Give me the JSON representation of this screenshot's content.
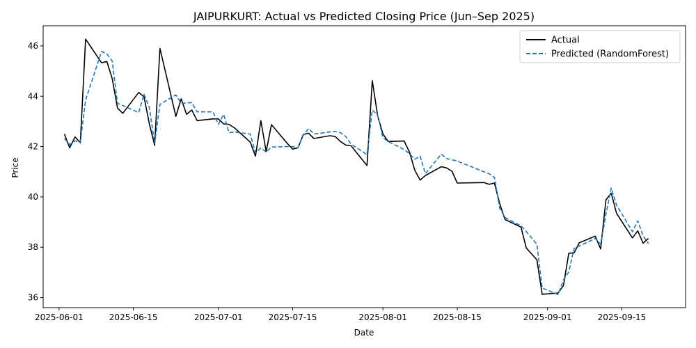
{
  "chart_data": {
    "type": "line",
    "title": "JAIPURKURT: Actual vs Predicted Closing Price (Jun–Sep 2025)",
    "xlabel": "Date",
    "ylabel": "Price",
    "xlim": [
      "2025-05-29",
      "2025-09-27"
    ],
    "ylim": [
      35.6,
      46.8
    ],
    "x_ticks": [
      "2025-06-01",
      "2025-06-15",
      "2025-07-01",
      "2025-07-15",
      "2025-08-01",
      "2025-08-15",
      "2025-09-01",
      "2025-09-15"
    ],
    "y_ticks": [
      36,
      38,
      40,
      42,
      44,
      46
    ],
    "grid": false,
    "legend_position": "top-right",
    "series": [
      {
        "name": "Actual",
        "color": "#000000",
        "style": "solid",
        "points": [
          [
            "2025-06-02",
            42.5
          ],
          [
            "2025-06-03",
            41.95
          ],
          [
            "2025-06-04",
            42.38
          ],
          [
            "2025-06-05",
            42.15
          ],
          [
            "2025-06-06",
            46.27
          ],
          [
            "2025-06-09",
            45.33
          ],
          [
            "2025-06-10",
            45.38
          ],
          [
            "2025-06-11",
            44.7
          ],
          [
            "2025-06-12",
            43.53
          ],
          [
            "2025-06-13",
            43.32
          ],
          [
            "2025-06-16",
            44.15
          ],
          [
            "2025-06-17",
            43.98
          ],
          [
            "2025-06-18",
            42.9
          ],
          [
            "2025-06-19",
            42.05
          ],
          [
            "2025-06-20",
            45.9
          ],
          [
            "2025-06-23",
            43.2
          ],
          [
            "2025-06-24",
            43.9
          ],
          [
            "2025-06-25",
            43.28
          ],
          [
            "2025-06-26",
            43.45
          ],
          [
            "2025-06-27",
            43.03
          ],
          [
            "2025-06-30",
            43.1
          ],
          [
            "2025-07-01",
            43.1
          ],
          [
            "2025-07-02",
            42.9
          ],
          [
            "2025-07-03",
            42.88
          ],
          [
            "2025-07-04",
            42.75
          ],
          [
            "2025-07-07",
            42.18
          ],
          [
            "2025-07-08",
            41.62
          ],
          [
            "2025-07-09",
            43.03
          ],
          [
            "2025-07-10",
            41.8
          ],
          [
            "2025-07-11",
            42.87
          ],
          [
            "2025-07-14",
            42.12
          ],
          [
            "2025-07-15",
            41.9
          ],
          [
            "2025-07-16",
            41.95
          ],
          [
            "2025-07-17",
            42.48
          ],
          [
            "2025-07-18",
            42.53
          ],
          [
            "2025-07-19",
            42.32
          ],
          [
            "2025-07-22",
            42.43
          ],
          [
            "2025-07-23",
            42.4
          ],
          [
            "2025-07-24",
            42.2
          ],
          [
            "2025-07-25",
            42.06
          ],
          [
            "2025-07-26",
            42.03
          ],
          [
            "2025-07-29",
            41.25
          ],
          [
            "2025-07-30",
            44.62
          ],
          [
            "2025-07-31",
            43.22
          ],
          [
            "2025-08-01",
            42.5
          ],
          [
            "2025-08-02",
            42.2
          ],
          [
            "2025-08-05",
            42.22
          ],
          [
            "2025-08-06",
            41.78
          ],
          [
            "2025-08-07",
            41.06
          ],
          [
            "2025-08-08",
            40.67
          ],
          [
            "2025-08-09",
            40.85
          ],
          [
            "2025-08-12",
            41.2
          ],
          [
            "2025-08-13",
            41.15
          ],
          [
            "2025-08-14",
            41.02
          ],
          [
            "2025-08-15",
            40.55
          ],
          [
            "2025-08-20",
            40.57
          ],
          [
            "2025-08-21",
            40.5
          ],
          [
            "2025-08-22",
            40.55
          ],
          [
            "2025-08-23",
            39.73
          ],
          [
            "2025-08-24",
            39.1
          ],
          [
            "2025-08-27",
            38.8
          ],
          [
            "2025-08-28",
            37.97
          ],
          [
            "2025-08-30",
            37.5
          ],
          [
            "2025-08-31",
            36.13
          ],
          [
            "2025-09-03",
            36.18
          ],
          [
            "2025-09-04",
            36.48
          ],
          [
            "2025-09-05",
            37.76
          ],
          [
            "2025-09-06",
            37.78
          ],
          [
            "2025-09-07",
            38.18
          ],
          [
            "2025-09-10",
            38.44
          ],
          [
            "2025-09-11",
            37.93
          ],
          [
            "2025-09-12",
            39.88
          ],
          [
            "2025-09-13",
            40.15
          ],
          [
            "2025-09-14",
            39.35
          ],
          [
            "2025-09-17",
            38.37
          ],
          [
            "2025-09-18",
            38.65
          ],
          [
            "2025-09-19",
            38.16
          ],
          [
            "2025-09-20",
            38.35
          ]
        ]
      },
      {
        "name": "Predicted (RandomForest)",
        "color": "#1f77b4",
        "style": "dashed",
        "points": [
          [
            "2025-06-02",
            42.32
          ],
          [
            "2025-06-03",
            42.08
          ],
          [
            "2025-06-04",
            42.22
          ],
          [
            "2025-06-05",
            42.18
          ],
          [
            "2025-06-06",
            43.85
          ],
          [
            "2025-06-09",
            45.78
          ],
          [
            "2025-06-10",
            45.68
          ],
          [
            "2025-06-11",
            45.4
          ],
          [
            "2025-06-12",
            43.72
          ],
          [
            "2025-06-13",
            43.63
          ],
          [
            "2025-06-16",
            43.35
          ],
          [
            "2025-06-17",
            44.08
          ],
          [
            "2025-06-18",
            43.55
          ],
          [
            "2025-06-19",
            42.12
          ],
          [
            "2025-06-20",
            43.68
          ],
          [
            "2025-06-23",
            44.05
          ],
          [
            "2025-06-24",
            43.72
          ],
          [
            "2025-06-25",
            43.73
          ],
          [
            "2025-06-26",
            43.75
          ],
          [
            "2025-06-27",
            43.38
          ],
          [
            "2025-06-30",
            43.38
          ],
          [
            "2025-07-01",
            42.88
          ],
          [
            "2025-07-02",
            43.28
          ],
          [
            "2025-07-03",
            42.55
          ],
          [
            "2025-07-04",
            42.58
          ],
          [
            "2025-07-07",
            42.5
          ],
          [
            "2025-07-08",
            41.75
          ],
          [
            "2025-07-09",
            41.95
          ],
          [
            "2025-07-10",
            41.78
          ],
          [
            "2025-07-11",
            41.98
          ],
          [
            "2025-07-14",
            42.0
          ],
          [
            "2025-07-15",
            42.0
          ],
          [
            "2025-07-16",
            41.95
          ],
          [
            "2025-07-17",
            42.45
          ],
          [
            "2025-07-18",
            42.72
          ],
          [
            "2025-07-19",
            42.5
          ],
          [
            "2025-07-22",
            42.58
          ],
          [
            "2025-07-23",
            42.6
          ],
          [
            "2025-07-24",
            42.55
          ],
          [
            "2025-07-25",
            42.4
          ],
          [
            "2025-07-26",
            42.1
          ],
          [
            "2025-07-29",
            41.68
          ],
          [
            "2025-07-30",
            43.45
          ],
          [
            "2025-07-31",
            43.25
          ],
          [
            "2025-08-01",
            42.35
          ],
          [
            "2025-08-02",
            42.2
          ],
          [
            "2025-08-05",
            41.88
          ],
          [
            "2025-08-06",
            41.72
          ],
          [
            "2025-08-07",
            41.5
          ],
          [
            "2025-08-08",
            41.62
          ],
          [
            "2025-08-09",
            40.92
          ],
          [
            "2025-08-12",
            41.7
          ],
          [
            "2025-08-13",
            41.52
          ],
          [
            "2025-08-14",
            41.48
          ],
          [
            "2025-08-15",
            41.42
          ],
          [
            "2025-08-20",
            41.0
          ],
          [
            "2025-08-21",
            40.92
          ],
          [
            "2025-08-22",
            40.78
          ],
          [
            "2025-08-23",
            39.55
          ],
          [
            "2025-08-24",
            39.18
          ],
          [
            "2025-08-27",
            38.85
          ],
          [
            "2025-08-28",
            38.62
          ],
          [
            "2025-08-30",
            38.12
          ],
          [
            "2025-08-31",
            36.38
          ],
          [
            "2025-09-03",
            36.12
          ],
          [
            "2025-09-04",
            36.7
          ],
          [
            "2025-09-05",
            37.02
          ],
          [
            "2025-09-06",
            37.95
          ],
          [
            "2025-09-07",
            38.05
          ],
          [
            "2025-09-10",
            38.35
          ],
          [
            "2025-09-11",
            38.12
          ],
          [
            "2025-09-12",
            39.3
          ],
          [
            "2025-09-13",
            40.35
          ],
          [
            "2025-09-14",
            39.68
          ],
          [
            "2025-09-17",
            38.62
          ],
          [
            "2025-09-18",
            39.05
          ],
          [
            "2025-09-19",
            38.45
          ],
          [
            "2025-09-20",
            38.15
          ]
        ]
      }
    ]
  }
}
